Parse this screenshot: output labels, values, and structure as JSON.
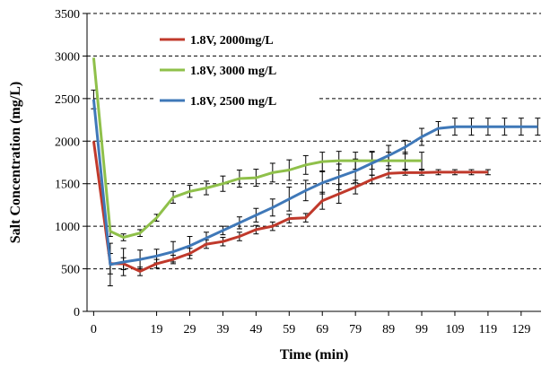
{
  "chart_data": {
    "type": "line",
    "title": "",
    "xlabel": "Time (min)",
    "ylabel": "Salt Concentration (mg/L)",
    "xlim": [
      -2,
      135
    ],
    "ylim": [
      0,
      3500
    ],
    "x_ticks": [
      0,
      19,
      29,
      39,
      49,
      59,
      69,
      79,
      89,
      99,
      109,
      119,
      129
    ],
    "y_ticks": [
      0,
      500,
      1000,
      1500,
      2000,
      2500,
      3000,
      3500
    ],
    "grid": "horizontal-dashed",
    "legend_position": "top-left",
    "series": [
      {
        "name": "1.8V, 2000mg/L",
        "color": "#c0392b",
        "x": [
          0,
          5,
          9,
          14,
          19,
          24,
          29,
          34,
          39,
          44,
          49,
          54,
          59,
          64,
          69,
          74,
          79,
          84,
          89,
          94,
          99,
          104,
          109,
          114,
          119
        ],
        "y": [
          2000,
          560,
          560,
          470,
          560,
          610,
          680,
          790,
          820,
          880,
          960,
          1000,
          1090,
          1100,
          1300,
          1380,
          1460,
          1550,
          1620,
          1630,
          1630,
          1635,
          1635,
          1635,
          1635
        ],
        "err": [
          0,
          120,
          70,
          50,
          50,
          50,
          60,
          50,
          50,
          50,
          50,
          50,
          50,
          50,
          100,
          110,
          80,
          50,
          50,
          30,
          30,
          30,
          30,
          30,
          30
        ]
      },
      {
        "name": "1.8V, 3000 mg/L",
        "color": "#8fc04a",
        "x": [
          0,
          5,
          9,
          14,
          19,
          24,
          29,
          34,
          39,
          44,
          49,
          54,
          59,
          64,
          69,
          74,
          79,
          84,
          89,
          94,
          99
        ],
        "y": [
          2980,
          940,
          870,
          920,
          1100,
          1340,
          1410,
          1450,
          1500,
          1560,
          1570,
          1630,
          1660,
          1720,
          1760,
          1770,
          1770,
          1770,
          1770,
          1770,
          1770
        ],
        "err": [
          0,
          60,
          40,
          40,
          40,
          70,
          70,
          80,
          90,
          100,
          100,
          110,
          120,
          110,
          110,
          110,
          100,
          100,
          100,
          100,
          100
        ]
      },
      {
        "name": "1.8V, 2500 mg/L",
        "color": "#3f78b8",
        "x": [
          0,
          5,
          9,
          14,
          19,
          24,
          29,
          34,
          39,
          44,
          49,
          54,
          59,
          64,
          69,
          74,
          79,
          84,
          89,
          94,
          99,
          104,
          109,
          114,
          119,
          124,
          129,
          134
        ],
        "y": [
          2490,
          550,
          580,
          610,
          650,
          700,
          770,
          860,
          950,
          1040,
          1130,
          1220,
          1320,
          1420,
          1510,
          1580,
          1650,
          1740,
          1830,
          1930,
          2050,
          2150,
          2170,
          2170,
          2170,
          2170,
          2170,
          2170
        ],
        "err": [
          110,
          250,
          160,
          110,
          80,
          120,
          110,
          70,
          50,
          70,
          80,
          100,
          140,
          120,
          130,
          150,
          140,
          140,
          120,
          80,
          100,
          80,
          100,
          100,
          100,
          100,
          100,
          100
        ]
      }
    ],
    "legend_order": [
      0,
      1,
      2
    ]
  }
}
